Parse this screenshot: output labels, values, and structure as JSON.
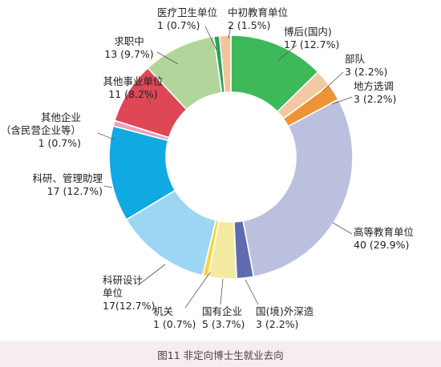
{
  "chart_data": {
    "type": "pie",
    "variant": "donut",
    "title": "图11  非定向博士生就业去向",
    "background": "#ffffff",
    "caption_band_color": "#f7ecef",
    "slices": [
      {
        "label": [
          "博后(国内)",
          "17 (12.7%)"
        ],
        "value": 17,
        "percent": 12.7,
        "color": "#3db95a"
      },
      {
        "label": [
          "部队",
          "3 (2.2%)"
        ],
        "value": 3,
        "percent": 2.2,
        "color": "#f2c9a3"
      },
      {
        "label": [
          "地方选调",
          "3 (2.2%)"
        ],
        "value": 3,
        "percent": 2.2,
        "color": "#ef9436"
      },
      {
        "label": [
          "高等教育单位",
          "40 (29.9%)"
        ],
        "value": 40,
        "percent": 29.9,
        "color": "#bcc0df"
      },
      {
        "label": [
          "国(境)外深造",
          "3 (2.2%)"
        ],
        "value": 3,
        "percent": 2.2,
        "color": "#5f6bae"
      },
      {
        "label": [
          "国有企业",
          "5 (3.7%)"
        ],
        "value": 5,
        "percent": 3.7,
        "color": "#f3e9a1"
      },
      {
        "label": [
          "机关",
          "1 (0.7%)"
        ],
        "value": 1,
        "percent": 0.7,
        "color": "#f6d63f"
      },
      {
        "label": [
          "科研设计",
          "单位",
          "17(12.7%)"
        ],
        "value": 17,
        "percent": 12.7,
        "color": "#9dd6f3"
      },
      {
        "label": [
          "科研、管理助理",
          "17 (12.7%)"
        ],
        "value": 17,
        "percent": 12.7,
        "color": "#10a9e1"
      },
      {
        "label": [
          "其他企业",
          "（含民营企业等）",
          "1 (0.7%)"
        ],
        "value": 1,
        "percent": 0.7,
        "color": "#ee9fbf"
      },
      {
        "label": [
          "其他事业单位",
          "11 (8.2%)"
        ],
        "value": 11,
        "percent": 8.2,
        "color": "#de4756"
      },
      {
        "label": [
          "求职中",
          "13 (9.7%)"
        ],
        "value": 13,
        "percent": 9.7,
        "color": "#b2d59b"
      },
      {
        "label": [
          "医疗卫生单位",
          "1 (0.7%)"
        ],
        "value": 1,
        "percent": 0.7,
        "color": "#2aa254"
      },
      {
        "label": [
          "中初教育单位",
          "2 (1.5%)"
        ],
        "value": 2,
        "percent": 1.5,
        "color": "#f3c39c"
      }
    ]
  }
}
